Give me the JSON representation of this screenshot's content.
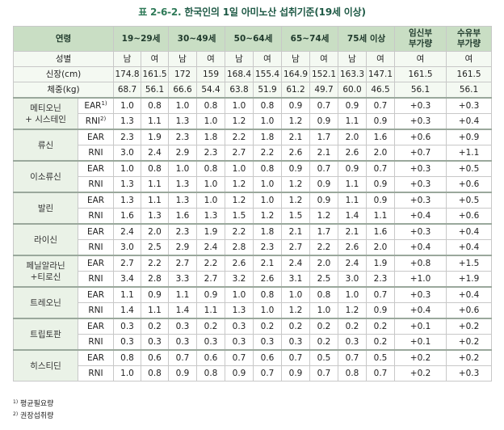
{
  "title": {
    "prefix": "표 2-6-2.",
    "text": "한국인의 1일 아미노산 섭취기준(19세 이상)"
  },
  "header": {
    "age_label": "연령",
    "groups": [
      "19~29세",
      "30~49세",
      "50~64세",
      "65~74세",
      "75세 이상"
    ],
    "pregnant": "임신부 부가량",
    "lactating": "수유부 부가량",
    "sex_label": "성별",
    "male": "남",
    "female": "여"
  },
  "height": {
    "label": "신장(cm)",
    "values": [
      "174.8",
      "161.5",
      "172",
      "159",
      "168.4",
      "155.4",
      "164.9",
      "152.1",
      "163.3",
      "147.1",
      "161.5",
      "161.5"
    ]
  },
  "weight": {
    "label": "체중(kg)",
    "values": [
      "68.7",
      "56.1",
      "66.6",
      "54.4",
      "63.8",
      "51.9",
      "61.2",
      "49.7",
      "60.0",
      "46.5",
      "56.1",
      "56.1"
    ]
  },
  "ear_label": "EAR",
  "rni_label": "RNI",
  "ear_sup": "1)",
  "rni_sup": "2)",
  "nutrients": [
    {
      "name": "메티오닌\n+ 시스테인",
      "ear": [
        "1.0",
        "0.8",
        "1.0",
        "0.8",
        "1.0",
        "0.8",
        "0.9",
        "0.7",
        "0.9",
        "0.7",
        "+0.3",
        "+0.3"
      ],
      "rni": [
        "1.3",
        "1.1",
        "1.3",
        "1.0",
        "1.2",
        "1.0",
        "1.2",
        "0.9",
        "1.1",
        "0.9",
        "+0.3",
        "+0.4"
      ]
    },
    {
      "name": "류신",
      "ear": [
        "2.3",
        "1.9",
        "2.3",
        "1.8",
        "2.2",
        "1.8",
        "2.1",
        "1.7",
        "2.0",
        "1.6",
        "+0.6",
        "+0.9"
      ],
      "rni": [
        "3.0",
        "2.4",
        "2.9",
        "2.3",
        "2.7",
        "2.2",
        "2.6",
        "2.1",
        "2.6",
        "2.0",
        "+0.7",
        "+1.1"
      ]
    },
    {
      "name": "이소류신",
      "ear": [
        "1.0",
        "0.8",
        "1.0",
        "0.8",
        "1.0",
        "0.8",
        "0.9",
        "0.7",
        "0.9",
        "0.7",
        "+0.3",
        "+0.5"
      ],
      "rni": [
        "1.3",
        "1.1",
        "1.3",
        "1.0",
        "1.2",
        "1.0",
        "1.2",
        "0.9",
        "1.1",
        "0.9",
        "+0.3",
        "+0.6"
      ]
    },
    {
      "name": "발린",
      "ear": [
        "1.3",
        "1.1",
        "1.3",
        "1.0",
        "1.2",
        "1.0",
        "1.2",
        "0.9",
        "1.1",
        "0.9",
        "+0.3",
        "+0.5"
      ],
      "rni": [
        "1.6",
        "1.3",
        "1.6",
        "1.3",
        "1.5",
        "1.2",
        "1.5",
        "1.2",
        "1.4",
        "1.1",
        "+0.4",
        "+0.6"
      ]
    },
    {
      "name": "라이신",
      "ear": [
        "2.4",
        "2.0",
        "2.3",
        "1.9",
        "2.2",
        "1.8",
        "2.1",
        "1.7",
        "2.1",
        "1.6",
        "+0.3",
        "+0.4"
      ],
      "rni": [
        "3.0",
        "2.5",
        "2.9",
        "2.4",
        "2.8",
        "2.3",
        "2.7",
        "2.2",
        "2.6",
        "2.0",
        "+0.4",
        "+0.4"
      ]
    },
    {
      "name": "페닐알라닌\n+티로신",
      "ear": [
        "2.7",
        "2.2",
        "2.7",
        "2.2",
        "2.6",
        "2.1",
        "2.4",
        "2.0",
        "2.4",
        "1.9",
        "+0.8",
        "+1.5"
      ],
      "rni": [
        "3.4",
        "2.8",
        "3.3",
        "2.7",
        "3.2",
        "2.6",
        "3.1",
        "2.5",
        "3.0",
        "2.3",
        "+1.0",
        "+1.9"
      ]
    },
    {
      "name": "트레오닌",
      "ear": [
        "1.1",
        "0.9",
        "1.1",
        "0.9",
        "1.0",
        "0.8",
        "1.0",
        "0.8",
        "1.0",
        "0.7",
        "+0.3",
        "+0.4"
      ],
      "rni": [
        "1.4",
        "1.1",
        "1.4",
        "1.1",
        "1.3",
        "1.0",
        "1.2",
        "1.0",
        "1.2",
        "0.9",
        "+0.4",
        "+0.6"
      ]
    },
    {
      "name": "트립토판",
      "ear": [
        "0.3",
        "0.2",
        "0.3",
        "0.2",
        "0.3",
        "0.2",
        "0.2",
        "0.2",
        "0.2",
        "0.2",
        "+0.1",
        "+0.2"
      ],
      "rni": [
        "0.3",
        "0.3",
        "0.3",
        "0.3",
        "0.3",
        "0.3",
        "0.3",
        "0.2",
        "0.3",
        "0.2",
        "+0.1",
        "+0.2"
      ]
    },
    {
      "name": "히스티딘",
      "ear": [
        "0.8",
        "0.6",
        "0.7",
        "0.6",
        "0.7",
        "0.6",
        "0.7",
        "0.5",
        "0.7",
        "0.5",
        "+0.2",
        "+0.2"
      ],
      "rni": [
        "1.0",
        "0.8",
        "0.9",
        "0.8",
        "0.9",
        "0.7",
        "0.9",
        "0.7",
        "0.8",
        "0.7",
        "+0.2",
        "+0.3"
      ]
    }
  ],
  "notes": [
    {
      "sup": "1)",
      "text": "평균필요량"
    },
    {
      "sup": "2)",
      "text": "권장섭취량"
    }
  ]
}
